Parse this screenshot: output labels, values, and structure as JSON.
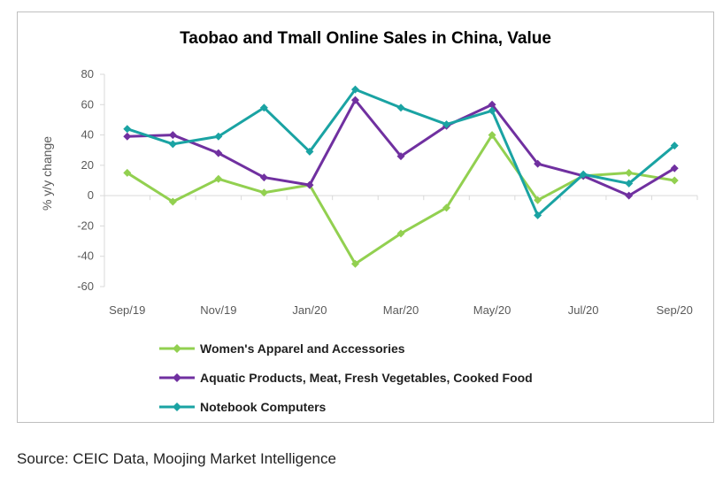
{
  "chart_data": {
    "type": "line",
    "title": "Taobao and Tmall Online Sales in China, Value",
    "xlabel": "",
    "ylabel": "% y/y change",
    "ylim": [
      -60,
      80
    ],
    "yticks": [
      80,
      60,
      40,
      20,
      0,
      -20,
      -40,
      -60
    ],
    "x": [
      "Sep/19",
      "Oct/19",
      "Nov/19",
      "Dec/19",
      "Jan/20",
      "Feb/20",
      "Mar/20",
      "Apr/20",
      "May/20",
      "Jun/20",
      "Jul/20",
      "Aug/20",
      "Sep/20"
    ],
    "xtick_labels": [
      "Sep/19",
      "",
      "Nov/19",
      "",
      "Jan/20",
      "",
      "Mar/20",
      "",
      "May/20",
      "",
      "Jul/20",
      "",
      "Sep/20"
    ],
    "grid": false,
    "legend_position": "bottom-left",
    "series": [
      {
        "name": "Women's Apparel and Accessories",
        "color": "#92d050",
        "values": [
          15,
          -4,
          11,
          2,
          7,
          -45,
          -25,
          -8,
          40,
          -3,
          13,
          15,
          10
        ]
      },
      {
        "name": "Aquatic Products, Meat, Fresh Vegetables, Cooked Food",
        "color": "#7030a0",
        "values": [
          39,
          40,
          28,
          12,
          7,
          63,
          26,
          46,
          60,
          21,
          13,
          0,
          18
        ]
      },
      {
        "name": "Notebook Computers",
        "color": "#1aa3a3",
        "values": [
          44,
          34,
          39,
          58,
          29,
          70,
          58,
          47,
          56,
          -13,
          14,
          8,
          33
        ]
      }
    ]
  },
  "source_text": "Source: CEIC Data, Moojing Market Intelligence"
}
